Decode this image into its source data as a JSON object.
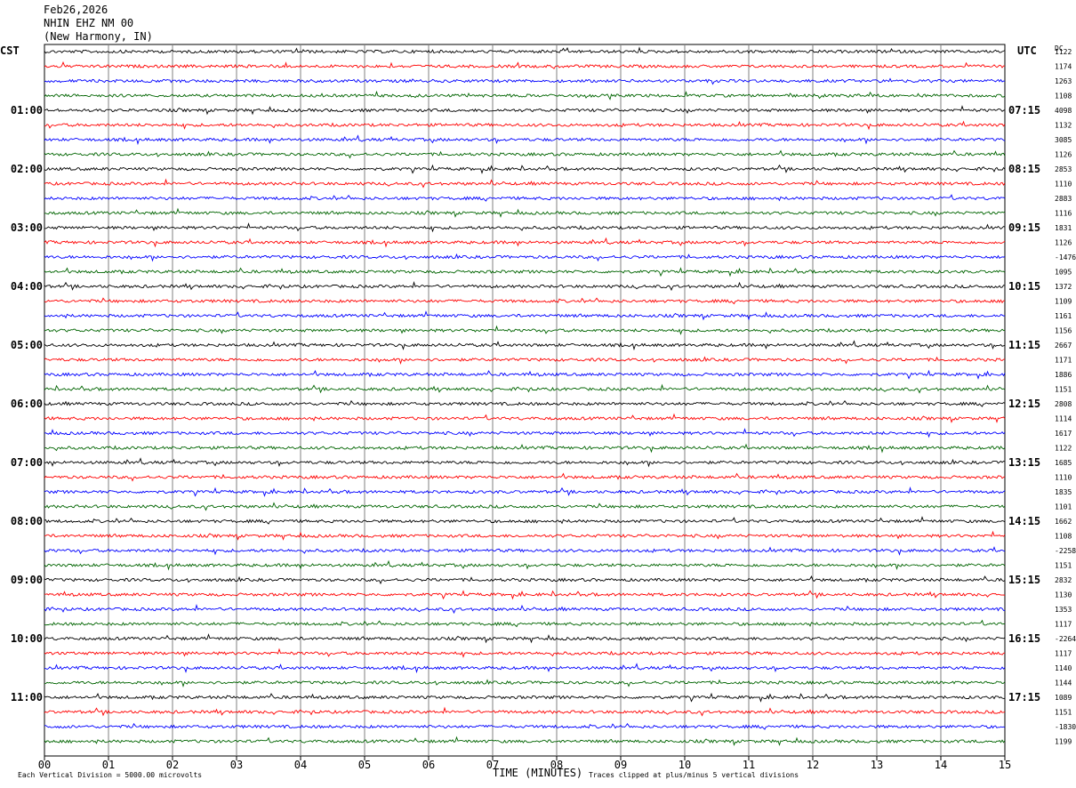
{
  "header": {
    "date": "Feb26,2026",
    "station": "NHIN EHZ NM 00",
    "location": "(New Harmony, IN)"
  },
  "left_timezone": "CST",
  "right_timezone": "UTC",
  "dc_label": "DC",
  "footer": {
    "scale_note": "Each Vertical Division = 5000.00 microvolts",
    "xlabel": "TIME (MINUTES)",
    "clip_note": "Traces clipped at plus/minus 5 vertical divisions"
  },
  "colors": {
    "cycle": [
      "#000000",
      "#ff0000",
      "#0000ff",
      "#006400"
    ],
    "grid": "#808080"
  },
  "chart_data": {
    "type": "line",
    "title": "NHIN EHZ NM 00",
    "xlabel": "TIME (MINUTES)",
    "xlim": [
      0,
      15
    ],
    "x_ticks": [
      "00",
      "01",
      "02",
      "03",
      "04",
      "05",
      "06",
      "07",
      "08",
      "09",
      "10",
      "11",
      "12",
      "13",
      "14",
      "15"
    ],
    "left_hour_labels": [
      "01:00",
      "02:00",
      "03:00",
      "04:00",
      "05:00",
      "06:00",
      "07:00",
      "08:00",
      "09:00",
      "10:00",
      "11:00"
    ],
    "right_hour_labels": [
      "07:15",
      "08:15",
      "09:15",
      "10:15",
      "11:15",
      "12:15",
      "13:15",
      "14:15",
      "15:15",
      "16:15",
      "17:15"
    ],
    "trace_count": 48,
    "dc_offsets": [
      "1122",
      "1174",
      "1263",
      "1108",
      "4098",
      "1132",
      "3085",
      "1126",
      "2853",
      "1110",
      "2883",
      "1116",
      "1831",
      "1126",
      "-1476",
      "1095",
      "1372",
      "1109",
      "1161",
      "1156",
      "2667",
      "1171",
      "1886",
      "1151",
      "2808",
      "1114",
      "1617",
      "1122",
      "1685",
      "1110",
      "1835",
      "1101",
      "1662",
      "1108",
      "-2258",
      "1151",
      "2832",
      "1130",
      "1353",
      "1117",
      "-2264",
      "1117",
      "1140",
      "1144",
      "1089",
      "1151",
      "-1830",
      "1199"
    ]
  }
}
